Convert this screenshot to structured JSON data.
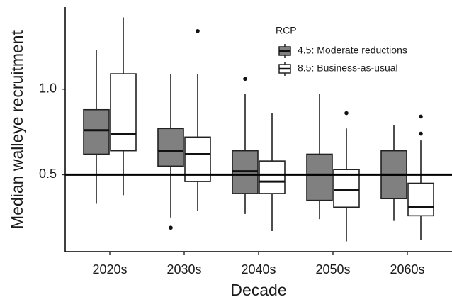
{
  "chart_data": {
    "type": "boxplot",
    "x_label": "Decade",
    "y_label": "Median walleye recruitment",
    "categories": [
      "2020s",
      "2030s",
      "2040s",
      "2050s",
      "2060s"
    ],
    "legend_title": "RCP",
    "series": [
      {
        "name": "4.5: Moderate reductions",
        "color": "#808080",
        "boxes": [
          {
            "whisker_low": 0.33,
            "q1": 0.62,
            "median": 0.76,
            "q3": 0.88,
            "whisker_high": 1.23
          },
          {
            "whisker_low": 0.25,
            "q1": 0.55,
            "median": 0.64,
            "q3": 0.77,
            "whisker_high": 1.09,
            "outliers": [
              0.19
            ]
          },
          {
            "whisker_low": 0.27,
            "q1": 0.39,
            "median": 0.52,
            "q3": 0.64,
            "whisker_high": 0.97,
            "outliers": [
              1.06
            ]
          },
          {
            "whisker_low": 0.24,
            "q1": 0.35,
            "median": 0.5,
            "q3": 0.62,
            "whisker_high": 0.97
          },
          {
            "whisker_low": 0.23,
            "q1": 0.36,
            "median": 0.5,
            "q3": 0.64,
            "whisker_high": 0.79
          }
        ]
      },
      {
        "name": "8.5: Business-as-usual",
        "color": "#ffffff",
        "boxes": [
          {
            "whisker_low": 0.38,
            "q1": 0.64,
            "median": 0.74,
            "q3": 1.09,
            "whisker_high": 1.42
          },
          {
            "whisker_low": 0.29,
            "q1": 0.46,
            "median": 0.62,
            "q3": 0.72,
            "whisker_high": 1.09,
            "outliers": [
              1.34
            ]
          },
          {
            "whisker_low": 0.17,
            "q1": 0.39,
            "median": 0.46,
            "q3": 0.58,
            "whisker_high": 0.86
          },
          {
            "whisker_low": 0.11,
            "q1": 0.31,
            "median": 0.41,
            "q3": 0.53,
            "whisker_high": 0.77,
            "outliers": [
              0.86
            ]
          },
          {
            "whisker_low": 0.12,
            "q1": 0.26,
            "median": 0.31,
            "q3": 0.45,
            "whisker_high": 0.7,
            "outliers": [
              0.84,
              0.74
            ]
          }
        ]
      }
    ],
    "ylim": [
      0.05,
      1.48
    ],
    "yticks": [
      0.5,
      {
        "value": 1,
        "label": "1.0"
      }
    ],
    "hline": 0.5
  }
}
